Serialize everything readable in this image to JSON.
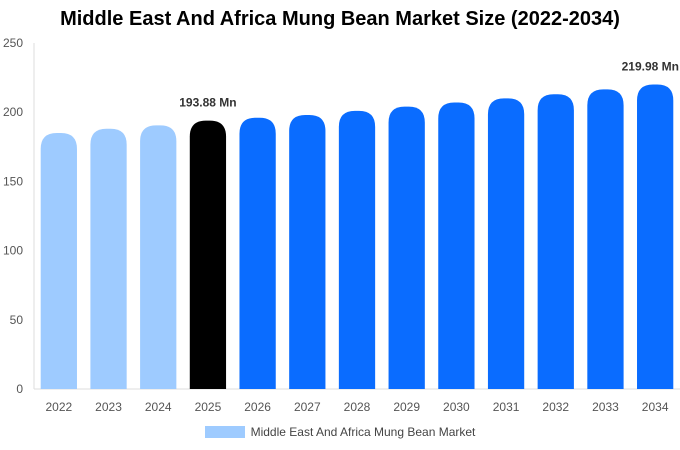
{
  "chart_data": {
    "type": "bar",
    "title": "Middle East And Africa Mung Bean Market Size (2022-2034)",
    "categories": [
      "2022",
      "2023",
      "2024",
      "2025",
      "2026",
      "2027",
      "2028",
      "2029",
      "2030",
      "2031",
      "2032",
      "2033",
      "2034"
    ],
    "series": [
      {
        "name": "Middle East And Africa Mung Bean Market",
        "values": [
          185.0,
          188.0,
          190.5,
          193.88,
          196.0,
          198.0,
          201.0,
          204.0,
          207.0,
          210.0,
          213.0,
          216.5,
          219.98
        ]
      }
    ],
    "ylim": [
      0,
      250
    ],
    "yticks": [
      0,
      50,
      100,
      150,
      200,
      250
    ],
    "data_labels": [
      {
        "category": "2025",
        "text": "193.88 Mn"
      },
      {
        "category": "2034",
        "text": "219.98 Mn"
      }
    ],
    "colors": {
      "historical": "#9ecbff",
      "current": "#000000",
      "forecast": "#0a6cff"
    },
    "highlight_category": "2025",
    "legend": {
      "position": "bottom",
      "label": "Middle East And Africa Mung Bean Market",
      "color": "#9ecbff"
    },
    "grid": false
  }
}
